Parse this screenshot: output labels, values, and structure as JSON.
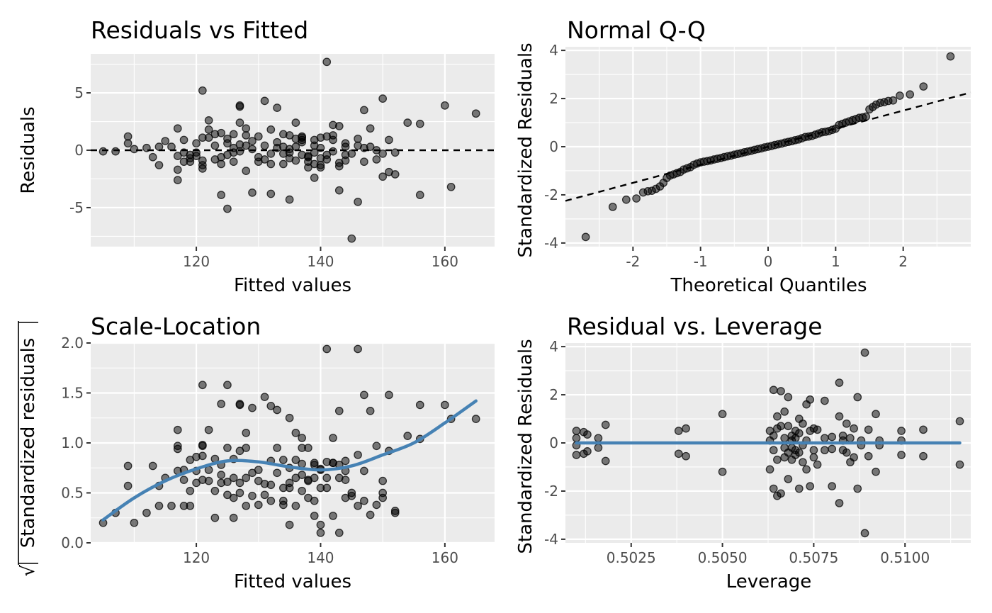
{
  "chart_data": [
    {
      "type": "scatter",
      "id": "residuals_vs_fitted",
      "title": "Residuals vs Fitted",
      "xlabel": "Fitted values",
      "ylabel": "Residuals",
      "xlim": [
        103,
        168
      ],
      "ylim": [
        -8.4,
        8.4
      ],
      "x_ticks": [
        120,
        140,
        160
      ],
      "x_tick_labels": [
        "120",
        "140",
        "160"
      ],
      "y_ticks": [
        -5,
        0,
        5
      ],
      "y_tick_labels": [
        "-5",
        "0",
        "5"
      ],
      "reference_line": {
        "type": "hline",
        "y": 0,
        "style": "dashed"
      },
      "grid": true,
      "points": {
        "x": [
          105,
          107,
          109,
          109,
          110,
          112,
          113,
          114,
          114,
          115,
          116,
          117,
          117,
          117,
          117,
          118,
          118,
          118,
          119,
          119,
          119,
          120,
          120,
          120,
          121,
          121,
          121,
          121,
          121,
          122,
          122,
          122,
          123,
          123,
          123,
          124,
          124,
          124,
          124,
          125,
          125,
          125,
          125,
          126,
          126,
          126,
          126,
          127,
          127,
          127,
          127,
          127,
          128,
          128,
          128,
          128,
          129,
          129,
          129,
          130,
          130,
          130,
          131,
          131,
          131,
          132,
          132,
          132,
          132,
          133,
          133,
          133,
          134,
          134,
          134,
          134,
          135,
          135,
          135,
          135,
          135,
          136,
          136,
          136,
          136,
          137,
          137,
          137,
          137,
          137,
          138,
          138,
          138,
          138,
          139,
          139,
          139,
          139,
          139,
          140,
          140,
          140,
          140,
          140,
          141,
          141,
          141,
          141,
          142,
          142,
          142,
          142,
          143,
          143,
          143,
          143,
          144,
          144,
          144,
          144,
          145,
          145,
          146,
          146,
          146,
          147,
          147,
          147,
          148,
          148,
          149,
          149,
          150,
          150,
          150,
          151,
          151,
          152,
          152,
          154,
          156,
          156,
          160,
          161,
          165
        ],
        "y": [
          -0.1,
          -0.1,
          1.2,
          0.6,
          0.1,
          0.2,
          -0.6,
          -1.3,
          0.3,
          0.8,
          0.3,
          -0.5,
          1.9,
          -1.7,
          -2.6,
          0.9,
          -0.2,
          -1.0,
          -1.0,
          -0.4,
          -0.7,
          0.6,
          -0.2,
          -0.5,
          5.2,
          1.1,
          -0.9,
          -1.3,
          -1.6,
          2.6,
          1.1,
          1.8,
          -0.8,
          0.4,
          1.4,
          -3.9,
          1.5,
          -0.6,
          -1.2,
          -5.1,
          -0.4,
          0.6,
          1.0,
          0.2,
          1.4,
          -1.0,
          -0.2,
          0.5,
          -0.1,
          3.8,
          2.4,
          3.9,
          -1.8,
          1.9,
          1.3,
          0.4,
          -3.7,
          0.8,
          0.1,
          1.2,
          -1.0,
          -0.6,
          4.3,
          0.4,
          -0.8,
          1.8,
          -0.3,
          -3.8,
          -1.2,
          3.7,
          0.7,
          0.2,
          1.4,
          -0.3,
          0.3,
          -1.2,
          1.3,
          0.1,
          -0.2,
          -4.3,
          -0.7,
          2.4,
          0.3,
          -0.9,
          1.0,
          -0.4,
          0.7,
          0.9,
          1.1,
          1.2,
          -0.6,
          -1.0,
          -0.5,
          -1.5,
          -1.2,
          -2.4,
          0.9,
          0.4,
          -0.2,
          -0.7,
          1.1,
          -1.3,
          0.2,
          -1.5,
          7.7,
          1.2,
          -0.4,
          -0.8,
          0.9,
          -0.1,
          2.2,
          1.3,
          -1.4,
          -3.5,
          -1.1,
          2.1,
          -0.4,
          0.3,
          0.6,
          -0.9,
          -7.7,
          -0.3,
          1.0,
          0.4,
          -4.5,
          0.2,
          -1.0,
          3.5,
          1.9,
          0.3,
          -0.8,
          0.0,
          -0.3,
          4.5,
          -2.3,
          0.9,
          -1.9,
          -2.1,
          -0.2,
          2.4,
          2.3,
          -3.9,
          3.9,
          -3.2,
          3.2
        ]
      }
    },
    {
      "type": "scatter",
      "id": "normal_qq",
      "title": "Normal Q-Q",
      "xlabel": "Theoretical Quantiles",
      "ylabel": "Standardized Residuals",
      "xlim": [
        -3.0,
        3.0
      ],
      "ylim": [
        -4.15,
        4.15
      ],
      "x_ticks": [
        -2,
        -1,
        0,
        1,
        2
      ],
      "x_tick_labels": [
        "-2",
        "-1",
        "0",
        "1",
        "2"
      ],
      "y_ticks": [
        -4,
        -2,
        0,
        2,
        4
      ],
      "y_tick_labels": [
        "-4",
        "-2",
        "0",
        "2",
        "4"
      ],
      "reference_line": {
        "type": "abline",
        "intercept": 0,
        "slope": 0.75,
        "style": "dashed"
      },
      "grid": true,
      "points": {
        "x": [
          -2.7,
          -2.3,
          -2.1,
          -1.95,
          -1.85,
          -1.78,
          -1.72,
          -1.66,
          -1.6,
          -1.55,
          -1.5,
          -1.45,
          -1.4,
          -1.35,
          -1.3,
          -1.25,
          -1.2,
          -1.15,
          -1.1,
          -1.05,
          -1.0,
          -0.95,
          -0.9,
          -0.85,
          -0.8,
          -0.75,
          -0.7,
          -0.65,
          -0.6,
          -0.55,
          -0.5,
          -0.45,
          -0.4,
          -0.35,
          -0.3,
          -0.25,
          -0.2,
          -0.15,
          -0.1,
          -0.05,
          0.0,
          0.05,
          0.1,
          0.15,
          0.2,
          0.25,
          0.3,
          0.35,
          0.4,
          0.45,
          0.5,
          0.55,
          0.6,
          0.65,
          0.7,
          0.75,
          0.8,
          0.85,
          0.9,
          0.95,
          1.0,
          1.05,
          1.1,
          1.15,
          1.2,
          1.25,
          1.3,
          1.35,
          1.4,
          1.45,
          1.5,
          1.55,
          1.6,
          1.66,
          1.72,
          1.78,
          1.85,
          1.95,
          2.1,
          2.3,
          2.7
        ],
        "y": [
          -3.75,
          -2.5,
          -2.2,
          -2.15,
          -1.9,
          -1.85,
          -1.83,
          -1.75,
          -1.65,
          -1.5,
          -1.3,
          -1.2,
          -1.15,
          -1.1,
          -1.05,
          -0.95,
          -0.9,
          -0.85,
          -0.75,
          -0.7,
          -0.65,
          -0.62,
          -0.6,
          -0.57,
          -0.53,
          -0.5,
          -0.47,
          -0.43,
          -0.4,
          -0.37,
          -0.33,
          -0.3,
          -0.27,
          -0.23,
          -0.2,
          -0.17,
          -0.13,
          -0.1,
          -0.07,
          -0.03,
          0.0,
          0.03,
          0.07,
          0.1,
          0.13,
          0.17,
          0.2,
          0.23,
          0.27,
          0.3,
          0.35,
          0.4,
          0.42,
          0.45,
          0.5,
          0.55,
          0.6,
          0.62,
          0.65,
          0.7,
          0.75,
          0.9,
          0.95,
          1.0,
          1.05,
          1.1,
          1.15,
          1.2,
          1.22,
          1.25,
          1.55,
          1.65,
          1.75,
          1.82,
          1.85,
          1.9,
          1.92,
          2.12,
          2.17,
          2.5,
          3.75
        ]
      }
    },
    {
      "type": "scatter",
      "id": "scale_location",
      "title": "Scale-Location",
      "xlabel": "Fitted values",
      "ylabel": "Standardized residuals",
      "ylabel_prefix": "√",
      "xlim": [
        103,
        168
      ],
      "ylim": [
        0.0,
        2.0
      ],
      "x_ticks": [
        120,
        140,
        160
      ],
      "x_tick_labels": [
        "120",
        "140",
        "160"
      ],
      "y_ticks": [
        0.0,
        0.5,
        1.0,
        1.5,
        2.0
      ],
      "y_tick_labels": [
        "0.0",
        "0.5",
        "1.0",
        "1.5",
        "2.0"
      ],
      "grid": true,
      "smooth_line": {
        "color": "#4682b4",
        "x": [
          105,
          110,
          115,
          120,
          125,
          130,
          135,
          140,
          145,
          150,
          155,
          160,
          165
        ],
        "y": [
          0.23,
          0.45,
          0.62,
          0.74,
          0.82,
          0.81,
          0.76,
          0.73,
          0.77,
          0.88,
          1.0,
          1.2,
          1.42
        ]
      },
      "points": {
        "x": [
          105,
          107,
          109,
          109,
          110,
          112,
          113,
          114,
          114,
          115,
          116,
          117,
          117,
          117,
          117,
          118,
          118,
          118,
          119,
          119,
          119,
          120,
          120,
          120,
          121,
          121,
          121,
          121,
          121,
          122,
          122,
          122,
          123,
          123,
          123,
          124,
          124,
          124,
          124,
          125,
          125,
          125,
          125,
          126,
          126,
          126,
          126,
          127,
          127,
          127,
          127,
          127,
          128,
          128,
          128,
          128,
          129,
          129,
          129,
          130,
          130,
          130,
          131,
          131,
          131,
          132,
          132,
          132,
          132,
          133,
          133,
          133,
          134,
          134,
          134,
          134,
          135,
          135,
          135,
          135,
          135,
          136,
          136,
          136,
          136,
          137,
          137,
          137,
          137,
          137,
          138,
          138,
          138,
          138,
          139,
          139,
          139,
          139,
          139,
          140,
          140,
          140,
          140,
          140,
          141,
          141,
          141,
          141,
          142,
          142,
          142,
          142,
          143,
          143,
          143,
          143,
          144,
          144,
          144,
          144,
          145,
          145,
          146,
          146,
          146,
          147,
          147,
          147,
          148,
          148,
          149,
          149,
          150,
          150,
          150,
          151,
          151,
          152,
          152,
          154,
          156,
          156,
          160,
          161,
          165
        ],
        "y": [
          0.2,
          0.3,
          0.77,
          0.57,
          0.2,
          0.3,
          0.77,
          0.57,
          0.37,
          0.65,
          0.37,
          0.94,
          0.97,
          0.72,
          1.13,
          0.37,
          0.73,
          0.63,
          0.37,
          0.83,
          0.52,
          0.72,
          0.6,
          0.86,
          1.58,
          0.87,
          0.97,
          0.63,
          0.98,
          1.13,
          0.62,
          0.73,
          0.25,
          0.52,
          0.84,
          1.39,
          0.78,
          0.6,
          0.68,
          1.58,
          0.48,
          0.61,
          0.95,
          0.65,
          0.84,
          0.45,
          0.25,
          0.5,
          0.6,
          1.38,
          0.92,
          1.39,
          0.37,
          0.95,
          1.1,
          0.65,
          1.35,
          0.7,
          0.47,
          0.73,
          0.62,
          0.38,
          1.46,
          0.48,
          0.59,
          1.37,
          0.82,
          0.58,
          0.42,
          1.33,
          0.7,
          0.95,
          0.83,
          0.38,
          0.55,
          0.42,
          1.25,
          0.55,
          0.75,
          0.18,
          0.6,
          1.1,
          0.37,
          0.65,
          0.83,
          0.52,
          0.68,
          0.79,
          0.95,
          1.05,
          0.62,
          0.45,
          0.63,
          0.95,
          0.42,
          0.8,
          0.78,
          0.65,
          0.27,
          0.18,
          0.1,
          0.74,
          0.73,
          0.55,
          1.94,
          0.81,
          0.65,
          0.55,
          0.8,
          0.27,
          1.05,
          0.8,
          0.65,
          1.32,
          0.78,
          0.1,
          0.72,
          0.45,
          0.82,
          0.63,
          0.5,
          0.47,
          1.94,
          0.37,
          0.88,
          1.48,
          0.42,
          0.72,
          0.28,
          1.32,
          0.97,
          0.38,
          0.62,
          0.5,
          0.45,
          1.48,
          0.92,
          0.32,
          0.3,
          1.07,
          1.38,
          1.04,
          1.38,
          1.24,
          1.24
        ]
      }
    },
    {
      "type": "scatter",
      "id": "residual_vs_leverage",
      "title": "Residual vs. Leverage",
      "xlabel": "Leverage",
      "ylabel": "Standardized Residuals",
      "xlim": [
        0.5007,
        0.5118
      ],
      "ylim": [
        -4.15,
        4.15
      ],
      "x_ticks": [
        0.5025,
        0.505,
        0.5075,
        0.51
      ],
      "x_tick_labels": [
        "0.5025",
        "0.5050",
        "0.5075",
        "0.5100"
      ],
      "y_ticks": [
        -4,
        -2,
        0,
        2,
        4
      ],
      "y_tick_labels": [
        "-4",
        "-2",
        "0",
        "2",
        "4"
      ],
      "grid": true,
      "smooth_line": {
        "color": "#4682b4",
        "x": [
          0.501,
          0.5115
        ],
        "y": [
          0,
          0
        ]
      },
      "points": {
        "x": [
          0.501,
          0.501,
          0.501,
          0.501,
          0.5012,
          0.5012,
          0.5013,
          0.5013,
          0.5016,
          0.5016,
          0.5018,
          0.5018,
          0.5038,
          0.5038,
          0.504,
          0.504,
          0.505,
          0.505,
          0.5063,
          0.5063,
          0.5063,
          0.5064,
          0.5064,
          0.5064,
          0.5064,
          0.5065,
          0.5065,
          0.5065,
          0.5065,
          0.5066,
          0.5066,
          0.5066,
          0.5067,
          0.5067,
          0.5067,
          0.5067,
          0.5068,
          0.5068,
          0.5068,
          0.5068,
          0.5069,
          0.5069,
          0.5069,
          0.5069,
          0.507,
          0.507,
          0.507,
          0.507,
          0.5071,
          0.5071,
          0.5071,
          0.5071,
          0.5072,
          0.5072,
          0.5072,
          0.5073,
          0.5073,
          0.5073,
          0.5074,
          0.5074,
          0.5074,
          0.5075,
          0.5075,
          0.5075,
          0.5076,
          0.5076,
          0.5078,
          0.5078,
          0.5078,
          0.508,
          0.508,
          0.508,
          0.5082,
          0.5082,
          0.5082,
          0.5083,
          0.5083,
          0.5083,
          0.5084,
          0.5084,
          0.5085,
          0.5085,
          0.5086,
          0.5086,
          0.5087,
          0.5087,
          0.5088,
          0.5088,
          0.5089,
          0.5089,
          0.509,
          0.509,
          0.5092,
          0.5092,
          0.5093,
          0.5093,
          0.5099,
          0.5099,
          0.5099,
          0.5105,
          0.5105,
          0.5115,
          0.5115
        ],
        "y": [
          0.5,
          0.2,
          -0.1,
          -0.5,
          0.45,
          -0.45,
          0.35,
          -0.35,
          0.2,
          -0.2,
          0.75,
          -0.75,
          0.5,
          -0.45,
          0.6,
          -0.55,
          1.2,
          -1.2,
          0.5,
          -1.1,
          0.1,
          2.2,
          -1.9,
          0.3,
          -0.3,
          -2.2,
          1.1,
          0.6,
          -0.7,
          2.15,
          -2.1,
          0.7,
          1.3,
          -0.6,
          0.2,
          -0.2,
          -1.5,
          1.9,
          0.7,
          -0.4,
          -0.7,
          0.3,
          0.1,
          -0.2,
          -0.5,
          0.5,
          -0.3,
          0.2,
          -1.9,
          1.0,
          0.4,
          -0.4,
          -0.1,
          0.8,
          -0.8,
          -1.1,
          1.6,
          0.1,
          -1.8,
          1.8,
          0.5,
          0.6,
          -0.6,
          -0.3,
          0.55,
          -0.9,
          1.75,
          0.2,
          -0.3,
          -1.8,
          0.25,
          -0.25,
          2.5,
          -2.5,
          1.1,
          0.3,
          -0.3,
          0.1,
          -0.4,
          0.8,
          0.2,
          -0.8,
          0.6,
          -0.6,
          -1.9,
          1.9,
          0.1,
          -0.1,
          3.75,
          -3.75,
          0.55,
          -0.55,
          1.2,
          -1.2,
          0.1,
          -0.1,
          0.5,
          0.1,
          -0.5,
          0.55,
          -0.55,
          0.9,
          -0.9
        ]
      }
    }
  ]
}
